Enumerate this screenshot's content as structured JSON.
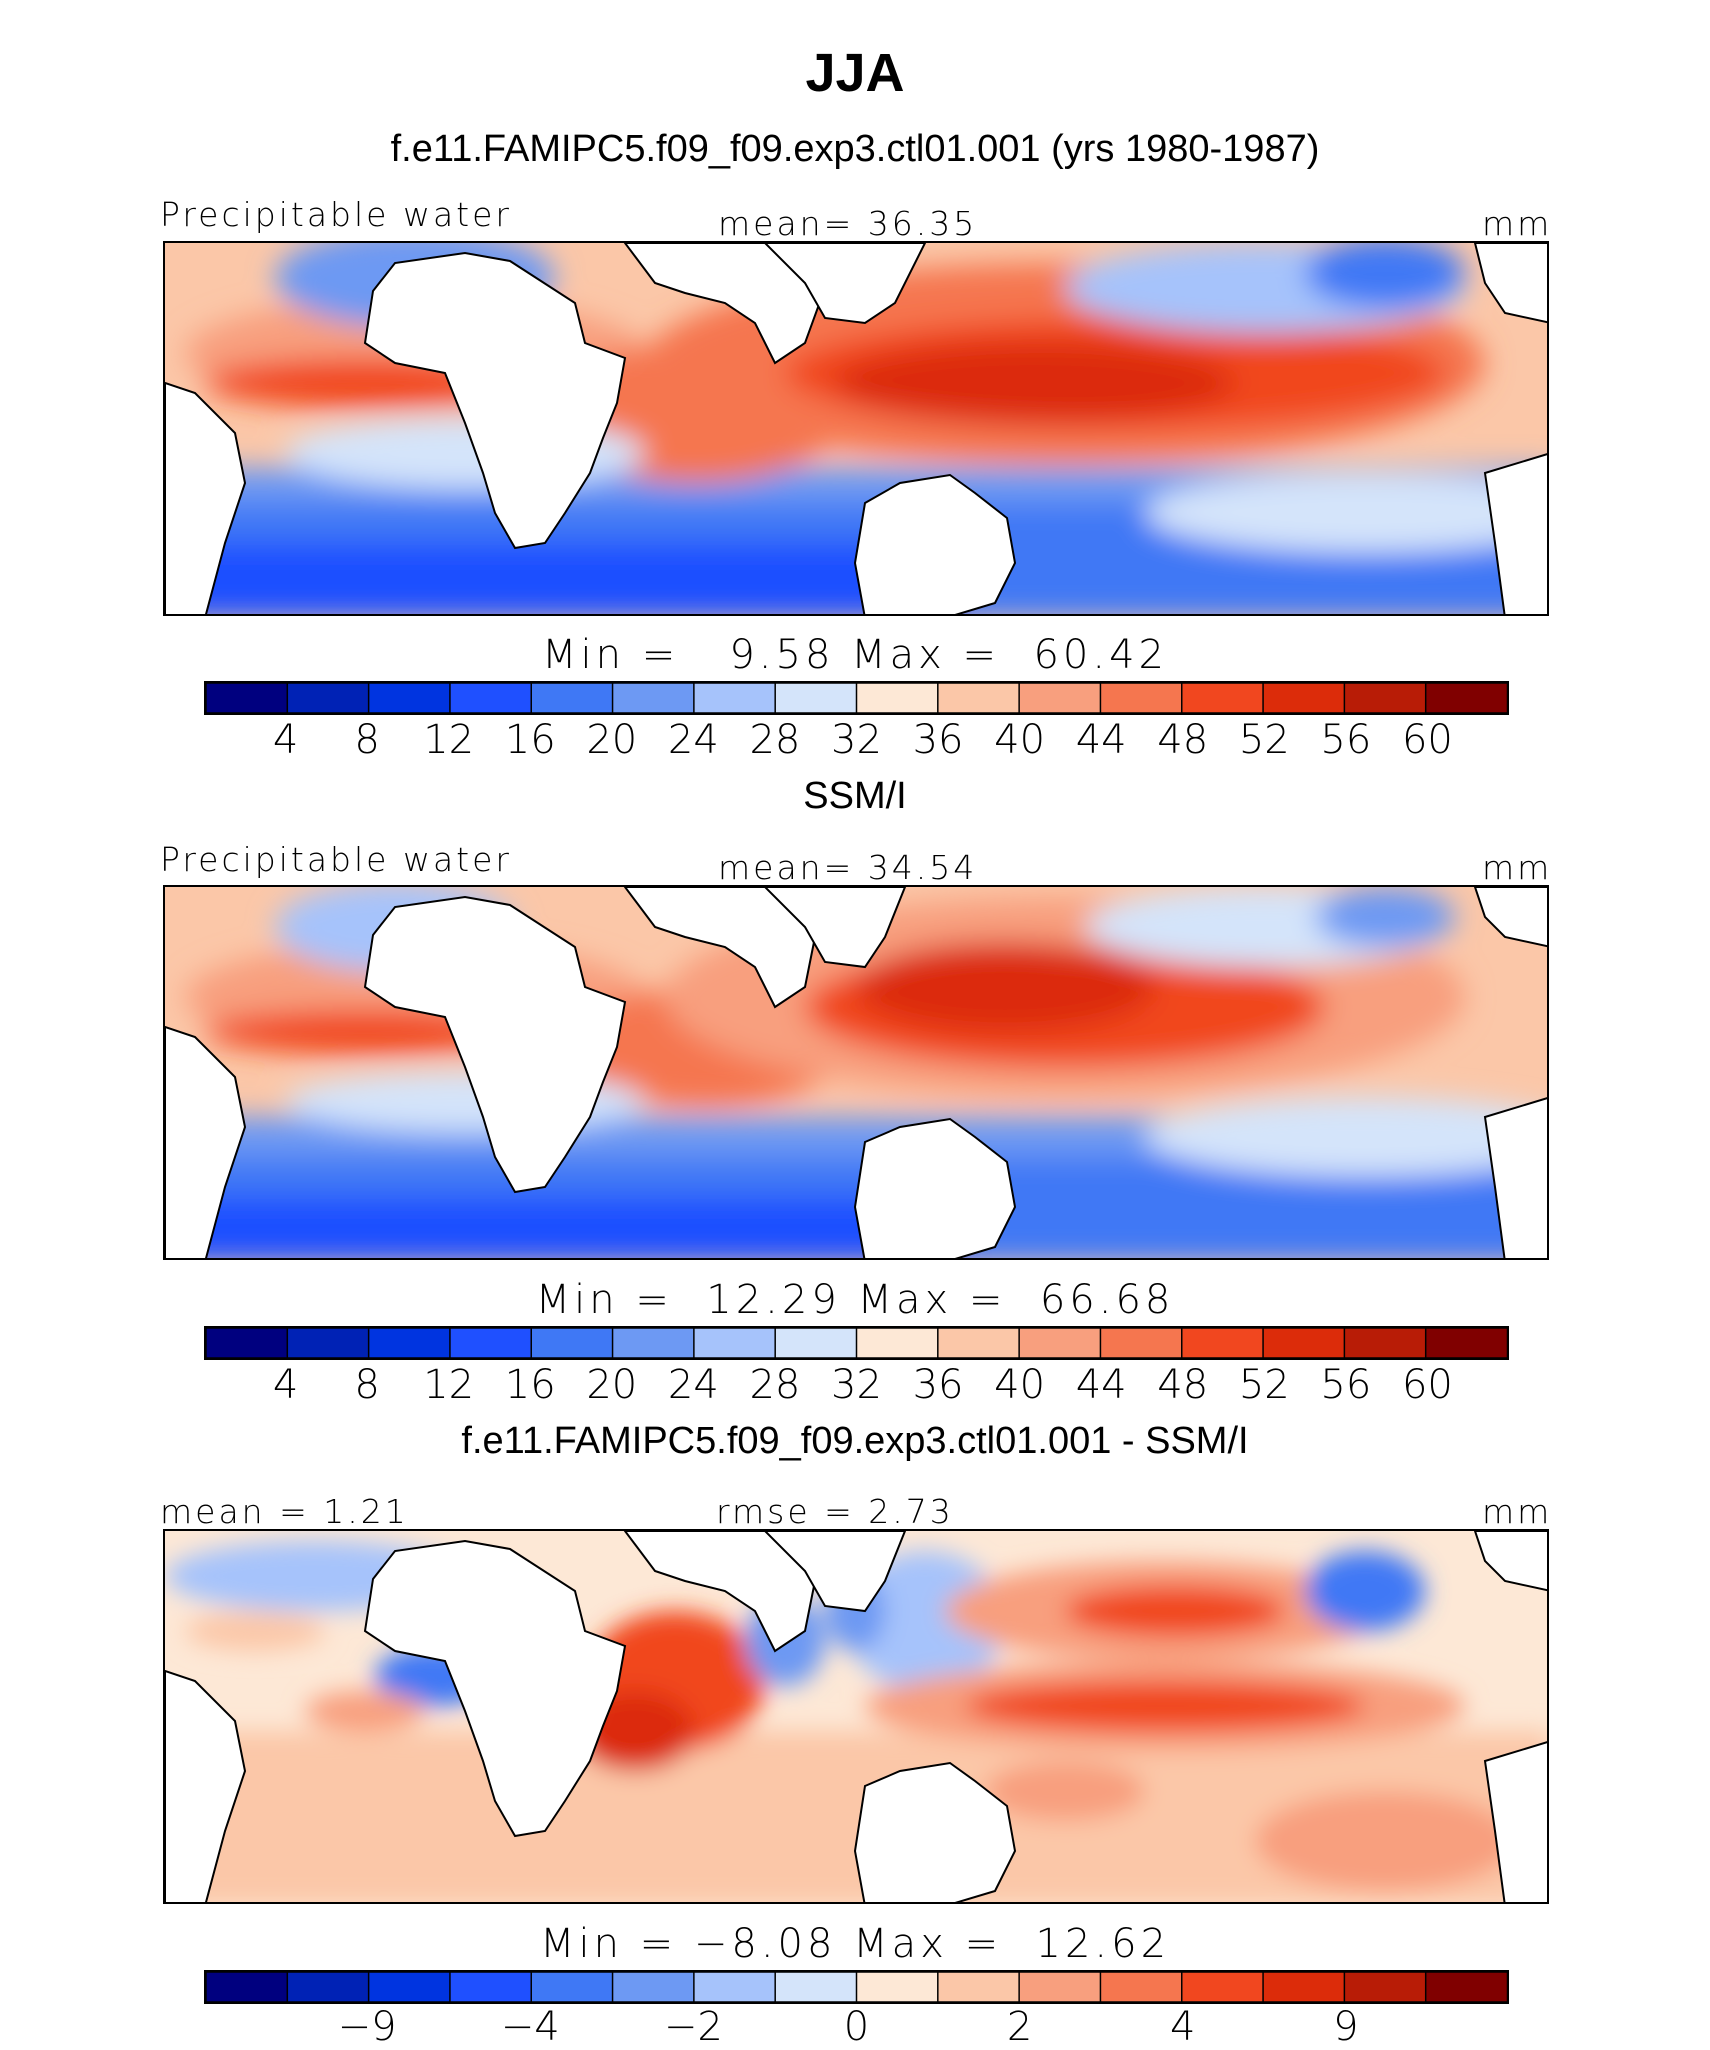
{
  "title": "JJA",
  "palette": {
    "blue_red": [
      "#00007f",
      "#0022b5",
      "#0034e0",
      "#1f50ff",
      "#3f78f5",
      "#6d99f3",
      "#a6c3fb",
      "#d4e4fa",
      "#fde8d6",
      "#fbc7a8",
      "#f89f7e",
      "#f5764f",
      "#f1471f",
      "#dc2c0a",
      "#b81c06",
      "#800000"
    ]
  },
  "panels": [
    {
      "id": "model",
      "title": "f.e11.FAMIPC5.f09_f09.exp3.ctl01.001 (yrs 1980-1987)",
      "left_label": "Precipitable water",
      "center_label": "mean=  36.35",
      "right_label": "mm",
      "stats": "Min =   9.58 Max =  60.42",
      "cbar_ticks": [
        "4",
        "8",
        "12",
        "16",
        "20",
        "24",
        "28",
        "32",
        "36",
        "40",
        "44",
        "48",
        "52",
        "56",
        "60"
      ]
    },
    {
      "id": "obs",
      "title": "SSM/I",
      "left_label": "Precipitable water",
      "center_label": "mean=  34.54",
      "right_label": "mm",
      "stats": "Min =  12.29 Max =  66.68",
      "cbar_ticks": [
        "4",
        "8",
        "12",
        "16",
        "20",
        "24",
        "28",
        "32",
        "36",
        "40",
        "44",
        "48",
        "52",
        "56",
        "60"
      ]
    },
    {
      "id": "diff",
      "title": "f.e11.FAMIPC5.f09_f09.exp3.ctl01.001 - SSM/I",
      "left_label": "mean =   1.21",
      "center_label": "rmse =   2.73",
      "right_label": "mm",
      "stats": "Min = −8.08 Max =  12.62",
      "cbar_ticks": [
        "−9",
        "−4",
        "−2",
        "0",
        "2",
        "4",
        "9"
      ]
    }
  ]
}
